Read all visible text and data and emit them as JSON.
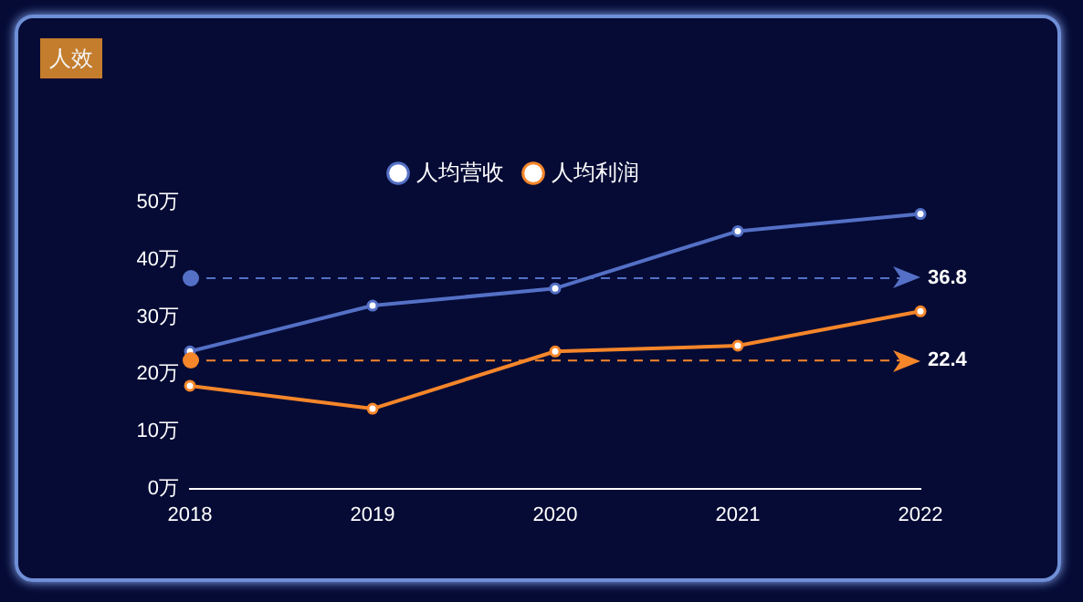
{
  "chart_data": {
    "type": "line",
    "title": "人效",
    "categories": [
      "2018",
      "2019",
      "2020",
      "2021",
      "2022"
    ],
    "series": [
      {
        "name": "人均营收",
        "color": "#5470c6",
        "values": [
          24,
          32,
          35,
          45,
          48
        ]
      },
      {
        "name": "人均利润",
        "color": "#f5862a",
        "values": [
          18,
          14,
          24,
          25,
          31
        ]
      }
    ],
    "ylim": [
      0,
      50
    ],
    "yticks": [
      {
        "value": 0,
        "label": "0万"
      },
      {
        "value": 10,
        "label": "10万"
      },
      {
        "value": 20,
        "label": "20万"
      },
      {
        "value": 30,
        "label": "30万"
      },
      {
        "value": 40,
        "label": "40万"
      },
      {
        "value": 50,
        "label": "50万"
      }
    ],
    "ref_lines": [
      {
        "axis": "y",
        "value": 36.8,
        "label": "36.8",
        "color": "#5470c6",
        "line_style": "dashed"
      },
      {
        "axis": "y",
        "value": 22.4,
        "label": "22.4",
        "color": "#f5862a",
        "line_style": "dashed"
      }
    ],
    "grid": false,
    "legend": "top",
    "marker": "circle",
    "line_style": "solid"
  }
}
